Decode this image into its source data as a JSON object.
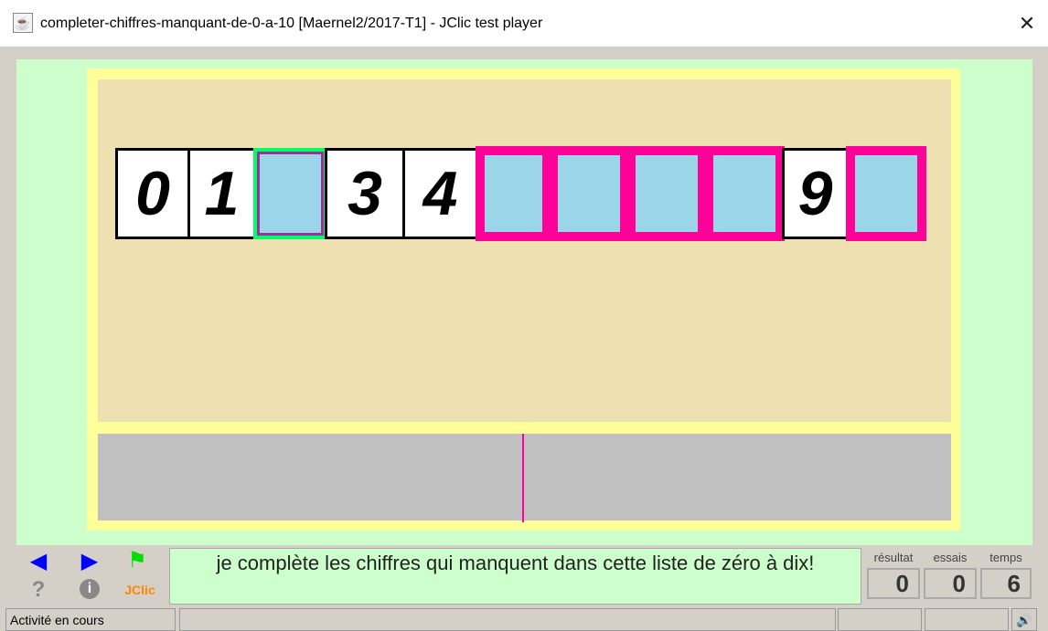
{
  "window": {
    "title": "completer-chiffres-manquant-de-0-a-10 [Maernel2/2017-T1] - JClic test player"
  },
  "activity": {
    "cells": [
      {
        "text": "0",
        "state": "filled"
      },
      {
        "text": "1",
        "state": "filled"
      },
      {
        "text": "",
        "state": "selected"
      },
      {
        "text": "3",
        "state": "filled"
      },
      {
        "text": "4",
        "state": "filled"
      },
      {
        "text": "",
        "state": "pending"
      },
      {
        "text": "",
        "state": "pending"
      },
      {
        "text": "",
        "state": "pending"
      },
      {
        "text": "",
        "state": "pending"
      },
      {
        "text": "9",
        "state": "filled"
      },
      {
        "text": "",
        "state": "pending"
      }
    ],
    "colors": {
      "empty": "#9ad6e8",
      "pending_border": "#ff0099",
      "selected_border": "#00ff66",
      "background": "#eee0b0"
    }
  },
  "controls": {
    "jclic_label": "JClic"
  },
  "message": "je complète les chiffres qui manquent dans cette liste de zéro à dix!",
  "counters": {
    "result_label": "résultat",
    "result": "0",
    "tries_label": "essais",
    "tries": "0",
    "time_label": "temps",
    "time": "6"
  },
  "status": {
    "text": "Activité en cours"
  }
}
